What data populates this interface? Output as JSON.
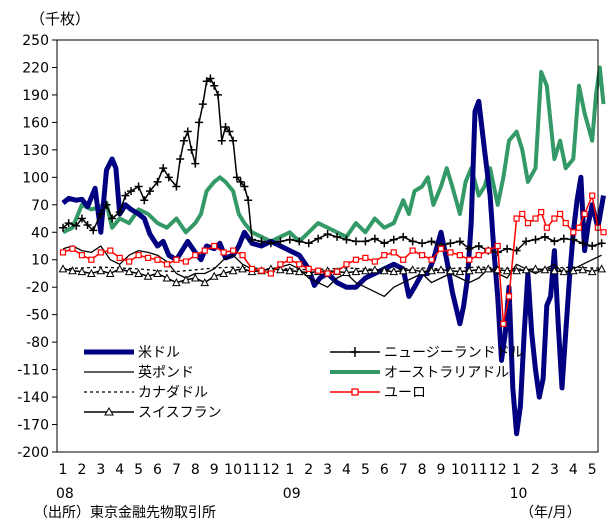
{
  "chart_data": {
    "type": "line",
    "unit_label": "（千枚）",
    "source_label": "（出所）東京金融先物取引所",
    "xaxis_unit_label": "（年/月）",
    "ylim": [
      -200,
      250
    ],
    "yticks": [
      250,
      220,
      190,
      160,
      130,
      100,
      70,
      40,
      10,
      -20,
      -50,
      -80,
      -110,
      -140,
      -170,
      -200
    ],
    "grid": false,
    "legend_position": "lower-left",
    "x_start": "2008-01",
    "x_end": "2010-05",
    "month_labels": [
      "1",
      "2",
      "3",
      "4",
      "5",
      "6",
      "7",
      "8",
      "9",
      "10",
      "11",
      "12",
      "1",
      "2",
      "3",
      "4",
      "5",
      "6",
      "7",
      "8",
      "9",
      "10",
      "11",
      "12",
      "1",
      "2",
      "3",
      "4",
      "5"
    ],
    "year_labels": [
      {
        "label": "08",
        "month_index": 0
      },
      {
        "label": "09",
        "month_index": 12
      },
      {
        "label": "10",
        "month_index": 24
      }
    ],
    "series": [
      {
        "name": "米ドル",
        "color": "#000080",
        "style": "thick",
        "x": [
          0,
          0.3,
          0.7,
          1,
          1.3,
          1.7,
          2,
          2.3,
          2.6,
          2.8,
          3,
          3.3,
          3.6,
          4,
          4.3,
          4.6,
          5,
          5.3,
          5.6,
          6,
          6.3,
          6.6,
          7,
          7.3,
          7.6,
          8,
          8.3,
          8.6,
          9,
          9.3,
          9.6,
          10,
          10.5,
          11,
          11.5,
          12,
          12.5,
          13,
          13.3,
          13.6,
          14,
          14.5,
          15,
          15.5,
          16,
          16.5,
          17,
          17.5,
          18,
          18.3,
          18.6,
          19,
          19.3,
          19.6,
          20,
          20.3,
          20.6,
          21,
          21.2,
          21.4,
          21.6,
          21.8,
          22,
          22.3,
          22.6,
          22.8,
          23,
          23.2,
          23.4,
          23.6,
          23.8,
          24,
          24.2,
          24.4,
          24.6,
          24.8,
          25,
          25.2,
          25.4,
          25.6,
          25.8,
          26,
          26.2,
          26.4,
          26.6,
          26.8,
          27,
          27.2,
          27.4,
          27.6,
          27.8,
          28,
          28.3,
          28.6
        ],
        "values": [
          72,
          77,
          75,
          76,
          68,
          88,
          40,
          108,
          120,
          110,
          60,
          70,
          65,
          60,
          55,
          38,
          25,
          30,
          15,
          10,
          20,
          30,
          18,
          10,
          25,
          22,
          28,
          12,
          15,
          25,
          40,
          28,
          25,
          30,
          25,
          20,
          15,
          0,
          -18,
          -10,
          -5,
          -15,
          -20,
          -20,
          -10,
          -5,
          0,
          5,
          0,
          -30,
          -20,
          -5,
          -5,
          10,
          40,
          10,
          -25,
          -60,
          -40,
          -10,
          50,
          172,
          183,
          130,
          80,
          20,
          -30,
          -100,
          -70,
          -20,
          -130,
          -180,
          -150,
          -70,
          -5,
          -70,
          -110,
          -140,
          -120,
          -40,
          -30,
          20,
          -60,
          -130,
          -70,
          -10,
          40,
          75,
          100,
          20,
          50,
          70,
          45,
          80
        ]
      },
      {
        "name": "ニュージーランドドル",
        "color": "#000000",
        "style": "plus",
        "x": [
          0,
          0.3,
          0.7,
          1,
          1.3,
          1.6,
          2,
          2.3,
          2.6,
          3,
          3.3,
          3.6,
          4,
          4.3,
          4.6,
          5,
          5.3,
          5.6,
          6,
          6.2,
          6.4,
          6.6,
          6.8,
          7,
          7.2,
          7.4,
          7.6,
          7.8,
          8,
          8.2,
          8.4,
          8.6,
          8.8,
          9,
          9.2,
          9.4,
          9.6,
          9.8,
          10,
          10.5,
          11,
          11.5,
          12,
          12.5,
          13,
          13.5,
          14,
          14.5,
          15,
          15.5,
          16,
          16.5,
          17,
          17.5,
          18,
          18.5,
          19,
          19.5,
          20,
          20.5,
          21,
          21.5,
          22,
          22.5,
          23,
          23.5,
          24,
          24.5,
          25,
          25.5,
          26,
          26.5,
          27,
          27.5,
          28,
          28.5
        ],
        "values": [
          45,
          50,
          47,
          55,
          48,
          42,
          60,
          70,
          55,
          62,
          80,
          85,
          90,
          75,
          85,
          95,
          110,
          100,
          90,
          120,
          140,
          150,
          130,
          115,
          160,
          180,
          205,
          208,
          200,
          190,
          140,
          155,
          150,
          140,
          100,
          95,
          90,
          75,
          32,
          30,
          28,
          30,
          32,
          30,
          28,
          33,
          38,
          35,
          32,
          30,
          30,
          33,
          28,
          32,
          35,
          30,
          28,
          30,
          25,
          28,
          30,
          22,
          25,
          20,
          18,
          22,
          20,
          30,
          32,
          35,
          30,
          33,
          32,
          28,
          25,
          28
        ]
      },
      {
        "name": "英ポンド",
        "color": "#000000",
        "style": "thin",
        "x": [
          0,
          0.5,
          1,
          1.5,
          2,
          2.5,
          3,
          3.5,
          4,
          4.5,
          5,
          5.5,
          6,
          6.5,
          7,
          7.5,
          8,
          8.5,
          9,
          9.5,
          10,
          10.5,
          11,
          11.5,
          12,
          12.5,
          13,
          13.5,
          14,
          14.5,
          15,
          15.5,
          16,
          16.5,
          17,
          17.5,
          18,
          18.5,
          19,
          19.5,
          20,
          20.5,
          21,
          21.5,
          22,
          22.5,
          23,
          23.5,
          24,
          24.5,
          25,
          25.5,
          26,
          26.5,
          27,
          27.5,
          28,
          28.5
        ],
        "values": [
          22,
          25,
          20,
          18,
          25,
          10,
          5,
          15,
          20,
          18,
          15,
          8,
          -5,
          -10,
          -5,
          -5,
          0,
          10,
          15,
          5,
          0,
          -2,
          0,
          2,
          5,
          0,
          -10,
          -15,
          -20,
          -10,
          -5,
          -15,
          -20,
          -25,
          -30,
          -20,
          -15,
          -10,
          -5,
          -15,
          -10,
          -5,
          -10,
          -15,
          -10,
          0,
          -5,
          -10,
          5,
          0,
          -5,
          0,
          5,
          -5,
          0,
          5,
          10,
          15
        ]
      },
      {
        "name": "オーストラリアドル",
        "color": "#339966",
        "style": "thick-green",
        "x": [
          0,
          0.5,
          1,
          1.5,
          2,
          2.3,
          2.6,
          3,
          3.5,
          4,
          4.5,
          5,
          5.5,
          6,
          6.5,
          7,
          7.3,
          7.6,
          8,
          8.3,
          8.6,
          9,
          9.3,
          9.6,
          10,
          10.5,
          11,
          11.5,
          12,
          12.5,
          13,
          13.5,
          14,
          14.5,
          15,
          15.5,
          16,
          16.5,
          17,
          17.5,
          18,
          18.3,
          18.6,
          19,
          19.3,
          19.6,
          20,
          20.3,
          20.6,
          21,
          21.3,
          21.6,
          22,
          22.3,
          22.6,
          23,
          23.3,
          23.6,
          24,
          24.3,
          24.6,
          25,
          25.3,
          25.6,
          26,
          26.3,
          26.6,
          27,
          27.3,
          27.6,
          28,
          28.2,
          28.4,
          28.6
        ],
        "values": [
          40,
          45,
          70,
          65,
          68,
          72,
          45,
          55,
          50,
          65,
          60,
          50,
          45,
          55,
          40,
          50,
          60,
          85,
          95,
          100,
          95,
          85,
          60,
          50,
          40,
          35,
          30,
          35,
          40,
          30,
          40,
          50,
          45,
          40,
          35,
          50,
          40,
          55,
          45,
          50,
          75,
          60,
          85,
          90,
          100,
          70,
          90,
          110,
          90,
          60,
          95,
          110,
          80,
          90,
          110,
          70,
          100,
          140,
          150,
          130,
          95,
          110,
          215,
          200,
          120,
          140,
          110,
          120,
          200,
          170,
          140,
          190,
          220,
          180
        ]
      },
      {
        "name": "カナダドル",
        "color": "#000000",
        "style": "dotted",
        "x": [
          0,
          1,
          2,
          3,
          4,
          5,
          6,
          7,
          8,
          9,
          10,
          11,
          12,
          13,
          14,
          15,
          16,
          17,
          18,
          19,
          20,
          21,
          22,
          23,
          24,
          25,
          26,
          27,
          28,
          28.6
        ],
        "values": [
          0,
          1,
          2,
          1,
          0,
          -2,
          -3,
          -1,
          1,
          2,
          1,
          0,
          0,
          -1,
          0,
          1,
          0,
          -1,
          0,
          1,
          0,
          1,
          2,
          1,
          0,
          -1,
          1,
          2,
          1,
          1
        ]
      },
      {
        "name": "ユーロ",
        "color": "#ff0000",
        "style": "square",
        "x": [
          0,
          0.5,
          1,
          1.5,
          2,
          2.5,
          3,
          3.5,
          4,
          4.5,
          5,
          5.5,
          6,
          6.5,
          7,
          7.5,
          8,
          8.5,
          9,
          9.5,
          10,
          10.5,
          11,
          11.5,
          12,
          12.5,
          13,
          13.5,
          14,
          14.5,
          15,
          15.5,
          16,
          16.5,
          17,
          17.5,
          18,
          18.5,
          19,
          19.5,
          20,
          20.5,
          21,
          21.5,
          22,
          22.5,
          23,
          23.3,
          23.6,
          24,
          24.3,
          24.6,
          25,
          25.3,
          25.6,
          26,
          26.3,
          26.6,
          27,
          27.3,
          27.6,
          28,
          28.3,
          28.6
        ],
        "values": [
          18,
          22,
          15,
          10,
          18,
          20,
          12,
          8,
          15,
          12,
          10,
          5,
          10,
          8,
          15,
          20,
          25,
          18,
          20,
          15,
          0,
          -2,
          -5,
          5,
          10,
          5,
          0,
          -2,
          -5,
          -3,
          5,
          10,
          12,
          8,
          15,
          18,
          10,
          20,
          15,
          10,
          22,
          18,
          15,
          10,
          15,
          20,
          25,
          -60,
          -30,
          55,
          60,
          50,
          55,
          62,
          45,
          55,
          60,
          50,
          40,
          45,
          60,
          80,
          45,
          40
        ]
      },
      {
        "name": "スイスフラン",
        "color": "#000000",
        "style": "triangle",
        "x": [
          0,
          0.5,
          1,
          1.5,
          2,
          2.5,
          3,
          3.5,
          4,
          4.5,
          5,
          5.5,
          6,
          6.5,
          7,
          7.5,
          8,
          8.5,
          9,
          9.5,
          10,
          10.5,
          11,
          11.5,
          12,
          12.5,
          13,
          13.5,
          14,
          14.5,
          15,
          15.5,
          16,
          16.5,
          17,
          17.5,
          18,
          18.5,
          19,
          19.5,
          20,
          20.5,
          21,
          21.5,
          22,
          22.5,
          23,
          23.5,
          24,
          24.5,
          25,
          25.5,
          26,
          26.5,
          27,
          27.5,
          28,
          28.5
        ],
        "values": [
          0,
          -2,
          -3,
          -5,
          -2,
          -5,
          0,
          -3,
          -5,
          -8,
          -5,
          -10,
          -15,
          -12,
          -10,
          -15,
          -8,
          -5,
          -2,
          0,
          -3,
          -2,
          0,
          -1,
          -2,
          -3,
          -4,
          -3,
          -2,
          -3,
          -4,
          -3,
          -2,
          -1,
          -2,
          -3,
          -2,
          -1,
          -3,
          -2,
          -1,
          -2,
          -3,
          -2,
          -1,
          0,
          -1,
          -2,
          -2,
          -1,
          0,
          -1,
          -2,
          -3,
          -2,
          -1,
          -3,
          0
        ]
      }
    ],
    "legend": [
      {
        "label": "米ドル",
        "series": 0
      },
      {
        "label": "ニュージーランドドル",
        "series": 1
      },
      {
        "label": "英ポンド",
        "series": 2
      },
      {
        "label": "オーストラリアドル",
        "series": 3
      },
      {
        "label": "カナダドル",
        "series": 4
      },
      {
        "label": "ユーロ",
        "series": 5
      },
      {
        "label": "スイスフラン",
        "series": 6
      }
    ]
  }
}
